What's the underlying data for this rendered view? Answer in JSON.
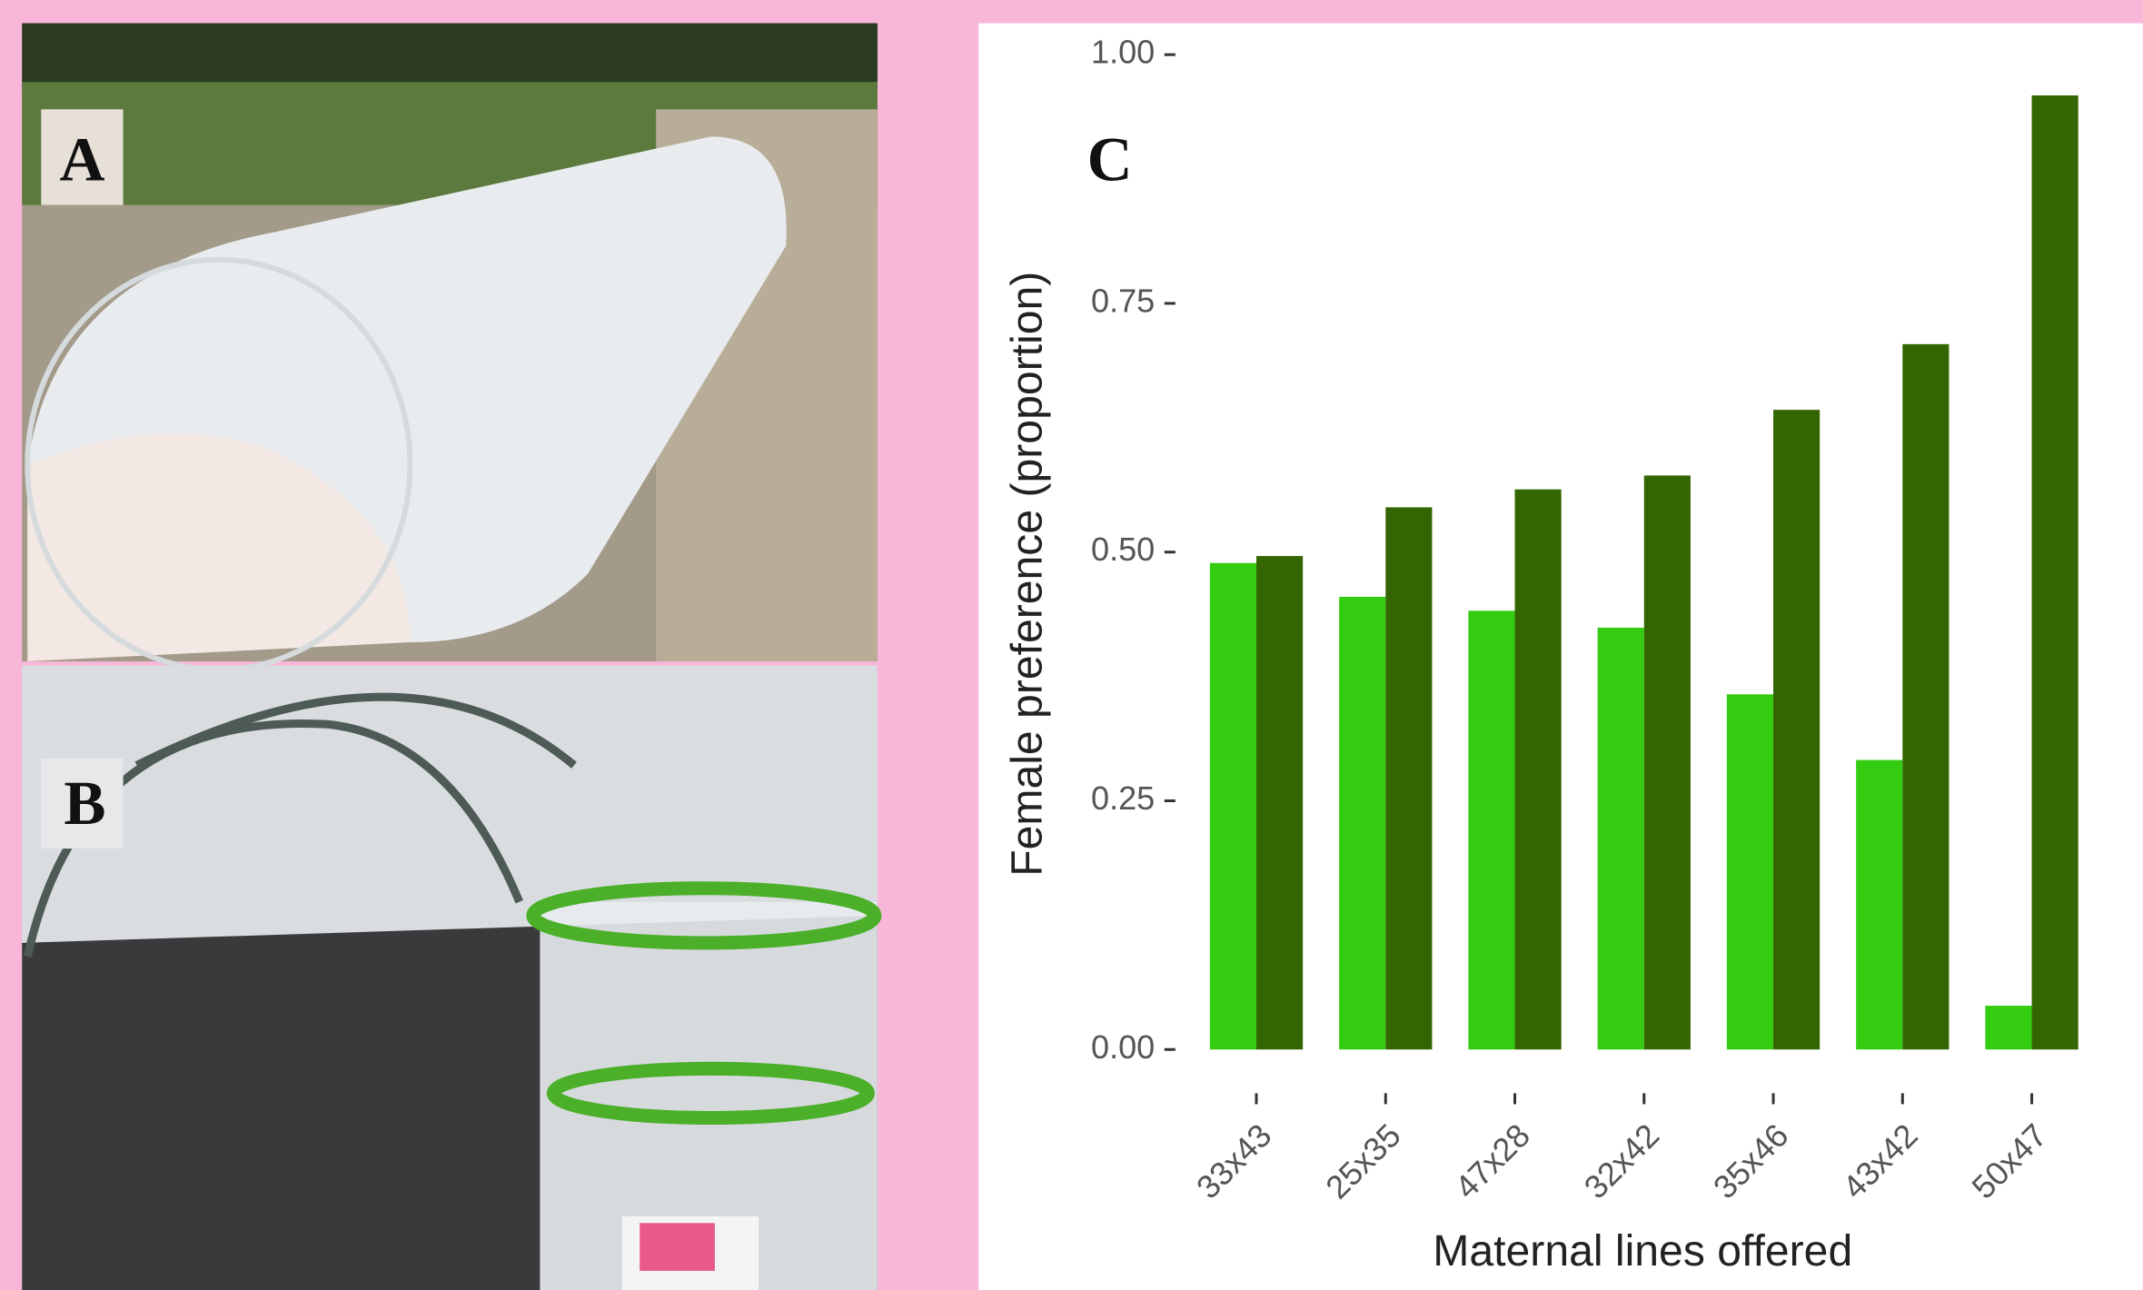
{
  "panels": {
    "photo_a_label": "A",
    "photo_b_label": "B",
    "chart_label": "C"
  },
  "chart_data": {
    "type": "bar",
    "x_label": "Maternal lines offered",
    "y_label": "Female preference (proportion)",
    "categories": [
      "33x43",
      "25x35",
      "47x28",
      "32x42",
      "35x46",
      "43x42",
      "50x47"
    ],
    "series": [
      {
        "color": "#33cc11",
        "values": [
          0.489,
          0.455,
          0.441,
          0.424,
          0.357,
          0.291,
          0.044
        ]
      },
      {
        "color": "#336600",
        "values": [
          0.496,
          0.545,
          0.563,
          0.577,
          0.643,
          0.709,
          0.959
        ]
      }
    ],
    "ylim": [
      0,
      1
    ],
    "yticks": [
      {
        "value": 0,
        "label": "0.00"
      },
      {
        "value": 0.25,
        "label": "0.25"
      },
      {
        "value": 0.5,
        "label": "0.50"
      },
      {
        "value": 0.75,
        "label": "0.75"
      },
      {
        "value": 1,
        "label": "1.00"
      }
    ],
    "grid": false
  }
}
